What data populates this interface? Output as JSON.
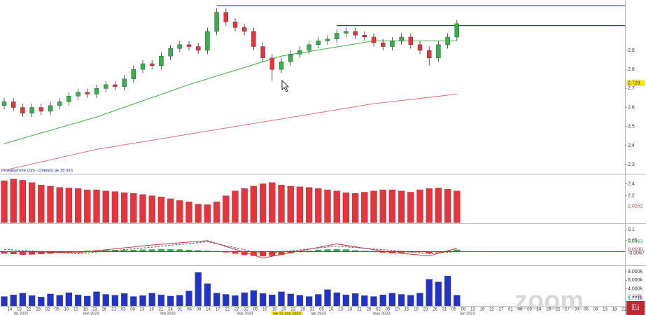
{
  "source": "ProRealTime.com - Diferido de 15 min",
  "watermark": "zoom",
  "logo": "Ei",
  "x_axis": {
    "ticks": [
      "14",
      "19",
      "22",
      "28",
      "02",
      "05",
      "10",
      "13",
      "18",
      "23",
      "26",
      "31",
      "03",
      "08",
      "13",
      "16",
      "21",
      "24",
      "01",
      "06",
      "09",
      "14",
      "17",
      "22",
      "27",
      "02",
      "05",
      "10",
      "15",
      "20",
      "23",
      "28",
      "31",
      "05",
      "10",
      "13",
      "18",
      "21",
      "26",
      "02",
      "05",
      "10",
      "15",
      "18",
      "23",
      "26",
      "31",
      "05",
      "08",
      "13",
      "19",
      "22",
      "27",
      "01",
      "06",
      "09",
      "14",
      "19",
      "22",
      "27",
      "30",
      "05",
      "08",
      "13",
      "18",
      "21"
    ],
    "months": [
      "dic 2022",
      "ene 2023",
      "feb 2023",
      "mar 2023",
      "abr 2023",
      "may 2023",
      "jun 2023"
    ],
    "highlight": "vie 31 mar 2023"
  },
  "chart_data": [
    {
      "type": "candlestick",
      "up_color": "#33b24a",
      "down_color": "#e8323c",
      "open": [
        2.61,
        2.63,
        2.6,
        2.57,
        2.6,
        2.58,
        2.61,
        2.63,
        2.66,
        2.68,
        2.67,
        2.7,
        2.72,
        2.71,
        2.75,
        2.8,
        2.83,
        2.82,
        2.87,
        2.91,
        2.93,
        2.92,
        2.9,
        3.0,
        3.1,
        3.05,
        3.02,
        3.0,
        2.92,
        2.86,
        2.8,
        2.84,
        2.88,
        2.9,
        2.93,
        2.95,
        2.96,
        2.99,
        3.0,
        2.98,
        2.97,
        2.94,
        2.92,
        2.95,
        2.97,
        2.93,
        2.9,
        2.86,
        2.93,
        2.97
      ],
      "high": [
        2.65,
        2.65,
        2.62,
        2.62,
        2.62,
        2.63,
        2.65,
        2.68,
        2.7,
        2.7,
        2.72,
        2.74,
        2.74,
        2.77,
        2.82,
        2.85,
        2.85,
        2.89,
        2.93,
        2.95,
        2.95,
        2.94,
        3.02,
        3.12,
        3.12,
        3.07,
        3.04,
        3.02,
        2.94,
        2.88,
        2.86,
        2.9,
        2.92,
        2.95,
        2.97,
        2.98,
        3.01,
        3.02,
        3.02,
        3.0,
        2.99,
        2.96,
        2.97,
        2.99,
        2.99,
        2.95,
        2.92,
        2.95,
        2.99,
        3.06
      ],
      "low": [
        2.59,
        2.58,
        2.55,
        2.55,
        2.56,
        2.56,
        2.59,
        2.61,
        2.64,
        2.65,
        2.65,
        2.68,
        2.69,
        2.69,
        2.73,
        2.78,
        2.8,
        2.8,
        2.85,
        2.89,
        2.9,
        2.88,
        2.88,
        2.98,
        3.03,
        3.0,
        2.98,
        2.9,
        2.84,
        2.74,
        2.78,
        2.82,
        2.86,
        2.88,
        2.91,
        2.93,
        2.94,
        2.97,
        2.96,
        2.95,
        2.92,
        2.9,
        2.9,
        2.93,
        2.91,
        2.88,
        2.82,
        2.84,
        2.91,
        2.95
      ],
      "close": [
        2.63,
        2.6,
        2.57,
        2.6,
        2.58,
        2.61,
        2.63,
        2.66,
        2.68,
        2.67,
        2.7,
        2.72,
        2.71,
        2.75,
        2.8,
        2.83,
        2.82,
        2.87,
        2.91,
        2.93,
        2.92,
        2.9,
        3.0,
        3.1,
        3.05,
        3.02,
        3.0,
        2.92,
        2.86,
        2.8,
        2.84,
        2.88,
        2.9,
        2.93,
        2.95,
        2.96,
        2.99,
        3.0,
        2.98,
        2.97,
        2.94,
        2.92,
        2.95,
        2.97,
        2.93,
        2.9,
        2.86,
        2.93,
        2.97,
        3.04
      ],
      "lines": [
        {
          "color": "#3cb043",
          "x": [
            0,
            10,
            20,
            30,
            40,
            49
          ],
          "values": [
            2.41,
            2.55,
            2.72,
            2.87,
            2.95,
            2.95
          ]
        },
        {
          "color": "#e0707a",
          "x": [
            0,
            10,
            20,
            30,
            40,
            49
          ],
          "values": [
            2.27,
            2.38,
            2.46,
            2.54,
            2.62,
            2.67
          ]
        }
      ],
      "hlines": [
        {
          "color": "#2b3bbf",
          "x": 23,
          "value": 3.135
        },
        {
          "color": "#2b3bbf",
          "x": 36,
          "value": 3.03
        }
      ],
      "marker": {
        "value": 2.728,
        "label": "2,728"
      },
      "ylim": [
        2.26,
        3.15
      ],
      "yticks": [
        {
          "value": 2.9,
          "label": "2,9"
        },
        {
          "value": 2.8,
          "label": "2,8"
        },
        {
          "value": 2.7,
          "label": "2,7"
        },
        {
          "value": 2.6,
          "label": "2,6"
        },
        {
          "value": 2.5,
          "label": "2,5"
        },
        {
          "value": 2.4,
          "label": "2,4"
        },
        {
          "value": 2.3,
          "label": "2,3"
        }
      ]
    },
    {
      "type": "bar",
      "color": "#e8323c",
      "values": [
        2.45,
        2.48,
        2.46,
        2.42,
        2.38,
        2.36,
        2.34,
        2.33,
        2.32,
        2.3,
        2.3,
        2.28,
        2.27,
        2.25,
        2.24,
        2.22,
        2.2,
        2.18,
        2.15,
        2.12,
        2.1,
        2.06,
        2.05,
        2.1,
        2.2,
        2.28,
        2.32,
        2.36,
        2.4,
        2.42,
        2.38,
        2.36,
        2.35,
        2.34,
        2.32,
        2.3,
        2.28,
        2.25,
        2.24,
        2.26,
        2.28,
        2.3,
        2.3,
        2.28,
        2.26,
        2.3,
        2.32,
        2.33,
        2.31,
        2.28
      ],
      "ylim": [
        1.75,
        2.5
      ],
      "yticks": [
        {
          "value": 2.4,
          "label": "2,4"
        },
        {
          "value": 2.2,
          "label": "2,2"
        }
      ],
      "markers": [
        {
          "value": 2.0252,
          "label": "2,0252",
          "color": "#e8323c"
        }
      ]
    },
    {
      "type": "macd",
      "up_color": "#33b24a",
      "down_color": "#e8323c",
      "zero_color": "#2b3bbf",
      "values": [
        -0.01,
        -0.012,
        -0.015,
        -0.014,
        -0.012,
        -0.01,
        -0.006,
        -0.003,
        0.002,
        0.004,
        0.005,
        0.006,
        0.007,
        0.007,
        0.008,
        0.009,
        0.01,
        0.012,
        0.011,
        0.01,
        0.008,
        0.006,
        0.004,
        0.002,
        -0.004,
        -0.01,
        -0.016,
        -0.02,
        -0.022,
        -0.02,
        -0.015,
        -0.008,
        -0.002,
        0.004,
        0.008,
        0.01,
        0.011,
        0.01,
        0.006,
        0.003,
        -0.002,
        -0.005,
        -0.008,
        -0.006,
        -0.004,
        -0.003,
        -0.008,
        -0.004,
        0.004,
        0.009
      ],
      "lines": [
        {
          "color": "#d0303a",
          "dash": false,
          "x": [
            0,
            8,
            16,
            22,
            28,
            36,
            42,
            46,
            49
          ],
          "values": [
            0.0,
            -0.005,
            0.03,
            0.05,
            -0.03,
            0.035,
            -0.005,
            -0.02,
            0.015
          ]
        },
        {
          "color": "#555555",
          "dash": true,
          "x": [
            0,
            8,
            16,
            22,
            28,
            36,
            42,
            46,
            49
          ],
          "values": [
            0.01,
            -0.01,
            0.02,
            0.045,
            -0.01,
            0.025,
            0.005,
            -0.01,
            0.0
          ]
        }
      ],
      "ylim": [
        -0.06,
        0.12
      ],
      "yticks": [
        {
          "value": 0.1,
          "label": "0,1"
        },
        {
          "value": 0.05,
          "label": "0,05"
        }
      ],
      "markers": [
        {
          "value": 0.0463,
          "label": "0,0463",
          "color": "#33b24a"
        },
        {
          "value": 0.009,
          "label": "0,0090",
          "color": "#e8323c"
        },
        {
          "value": -0.0067,
          "label": "-0,0067",
          "color": "#333333"
        }
      ]
    },
    {
      "type": "bar",
      "color": "#2233cc",
      "values": [
        2200,
        2600,
        3000,
        2400,
        2100,
        2800,
        2500,
        3100,
        2600,
        2300,
        3300,
        2700,
        2500,
        2900,
        2200,
        2400,
        3000,
        2600,
        2300,
        2500,
        3500,
        7800,
        5200,
        3000,
        2700,
        2400,
        3100,
        3600,
        2900,
        2600,
        3300,
        2800,
        2500,
        2200,
        2700,
        3800,
        3100,
        2600,
        2900,
        2400,
        2200,
        2600,
        3000,
        2700,
        2500,
        3000,
        6200,
        5600,
        7000,
        2500
      ],
      "ylim": [
        0,
        9000
      ],
      "yticks": [
        {
          "value": 8000,
          "label": "8.000k"
        },
        {
          "value": 6000,
          "label": "6.000k"
        },
        {
          "value": 4000,
          "label": "4.000k"
        }
      ],
      "markers": [
        {
          "value": 2215,
          "label": "2.215k",
          "color": "#e8323c"
        },
        {
          "value": 1771,
          "label": "1.771k",
          "color": "#2233cc"
        }
      ]
    }
  ]
}
